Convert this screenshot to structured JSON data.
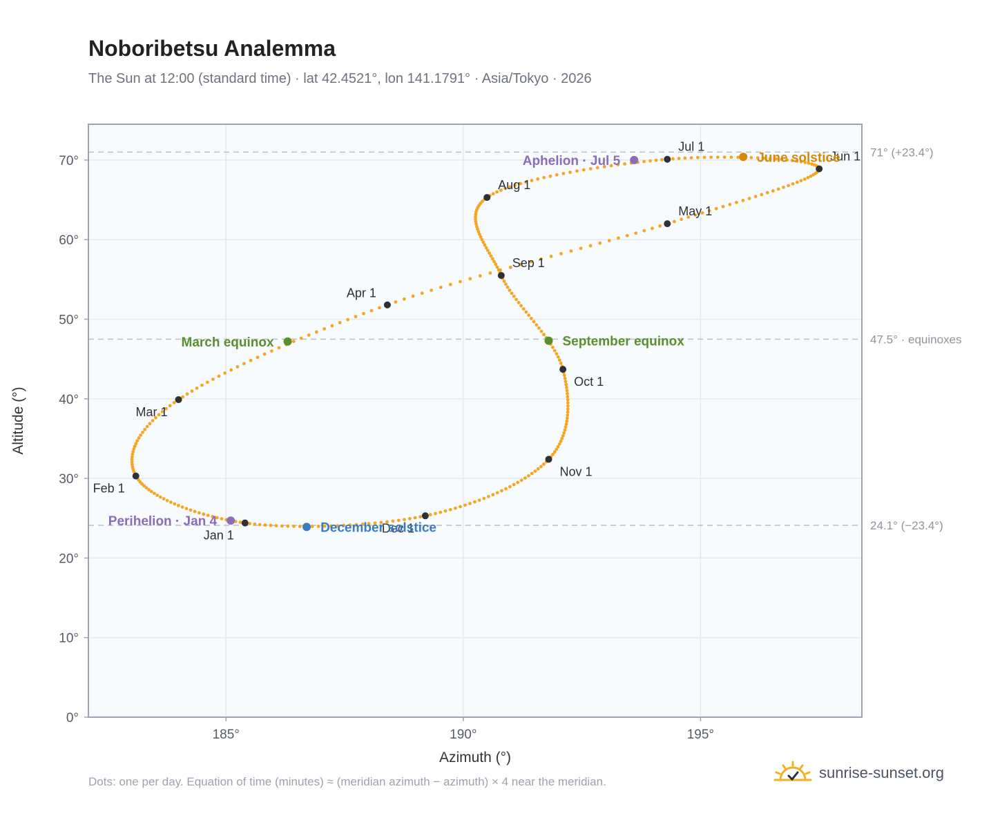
{
  "title": "Noboribetsu Analemma",
  "subtitle": "The Sun at 12:00 (standard time) · lat 42.4521°, lon 141.1791° · Asia/Tokyo · 2026",
  "footnote": "Dots: one per day. Equation of time (minutes) ≈ (meridian azimuth − azimuth) × 4 near the meridian.",
  "brand": "sunrise-sunset.org",
  "colors": {
    "curve": "#f4a623",
    "month": "#2d3136",
    "equinox": "#5a8f2e",
    "june_solstice": "#d4890a",
    "december_solstice": "#3b7bbf",
    "apsis": "#8e6bb8",
    "plot_bg": "#f8fbfd",
    "grid": "#e5e9ee",
    "frame": "#9aa5b4",
    "ref_line": "#b9bec6",
    "ref_text": "#8e949c"
  },
  "chart_data": {
    "type": "scatter",
    "xlabel": "Azimuth (°)",
    "ylabel": "Altitude (°)",
    "xlim": [
      182.1,
      198.4
    ],
    "ylim": [
      0,
      74.5
    ],
    "xticks": [
      185,
      190,
      195
    ],
    "xtick_labels": [
      "185°",
      "190°",
      "195°"
    ],
    "yticks": [
      0,
      10,
      20,
      30,
      40,
      50,
      60,
      70
    ],
    "ytick_labels": [
      "0°",
      "10°",
      "20°",
      "30°",
      "40°",
      "50°",
      "60°",
      "70°"
    ],
    "grid": true,
    "reference_lines": [
      {
        "y": 71.0,
        "label": "71° (+23.4°)"
      },
      {
        "y": 47.5,
        "label": "47.5° · equinoxes"
      },
      {
        "y": 24.1,
        "label": "24.1° (−23.4°)"
      }
    ],
    "month_markers": [
      {
        "label": "Jan 1",
        "az": 185.4,
        "alt": 24.4,
        "pos": "below-left"
      },
      {
        "label": "Feb 1",
        "az": 183.1,
        "alt": 30.3,
        "pos": "below-left"
      },
      {
        "label": "Mar 1",
        "az": 184.0,
        "alt": 39.9,
        "pos": "below-left"
      },
      {
        "label": "Apr 1",
        "az": 188.4,
        "alt": 51.8,
        "pos": "above-left"
      },
      {
        "label": "May 1",
        "az": 194.3,
        "alt": 62.0,
        "pos": "above-right"
      },
      {
        "label": "Jun 1",
        "az": 197.5,
        "alt": 68.9,
        "pos": "above-right"
      },
      {
        "label": "Jul 1",
        "az": 194.3,
        "alt": 70.1,
        "pos": "above-right"
      },
      {
        "label": "Aug 1",
        "az": 190.5,
        "alt": 65.3,
        "pos": "above-right"
      },
      {
        "label": "Sep 1",
        "az": 190.8,
        "alt": 55.5,
        "pos": "above-right"
      },
      {
        "label": "Oct 1",
        "az": 192.1,
        "alt": 43.7,
        "pos": "below-right"
      },
      {
        "label": "Nov 1",
        "az": 191.8,
        "alt": 32.4,
        "pos": "below-right"
      },
      {
        "label": "Dec 1",
        "az": 189.2,
        "alt": 25.3,
        "pos": "below-left"
      }
    ],
    "events": [
      {
        "label": "March equinox",
        "az": 186.3,
        "alt": 47.2,
        "color_key": "equinox",
        "side": "left"
      },
      {
        "label": "September equinox",
        "az": 191.8,
        "alt": 47.3,
        "color_key": "equinox",
        "side": "right"
      },
      {
        "label": "June solstice",
        "az": 195.9,
        "alt": 70.4,
        "color_key": "june_solstice",
        "side": "right"
      },
      {
        "label": "December solstice",
        "az": 186.7,
        "alt": 23.9,
        "color_key": "december_solstice",
        "side": "right"
      },
      {
        "label": "Aphelion · Jul 5",
        "az": 193.6,
        "alt": 70.0,
        "color_key": "apsis",
        "side": "left"
      },
      {
        "label": "Perihelion · Jan 4",
        "az": 185.1,
        "alt": 24.7,
        "color_key": "apsis",
        "side": "left"
      }
    ]
  }
}
